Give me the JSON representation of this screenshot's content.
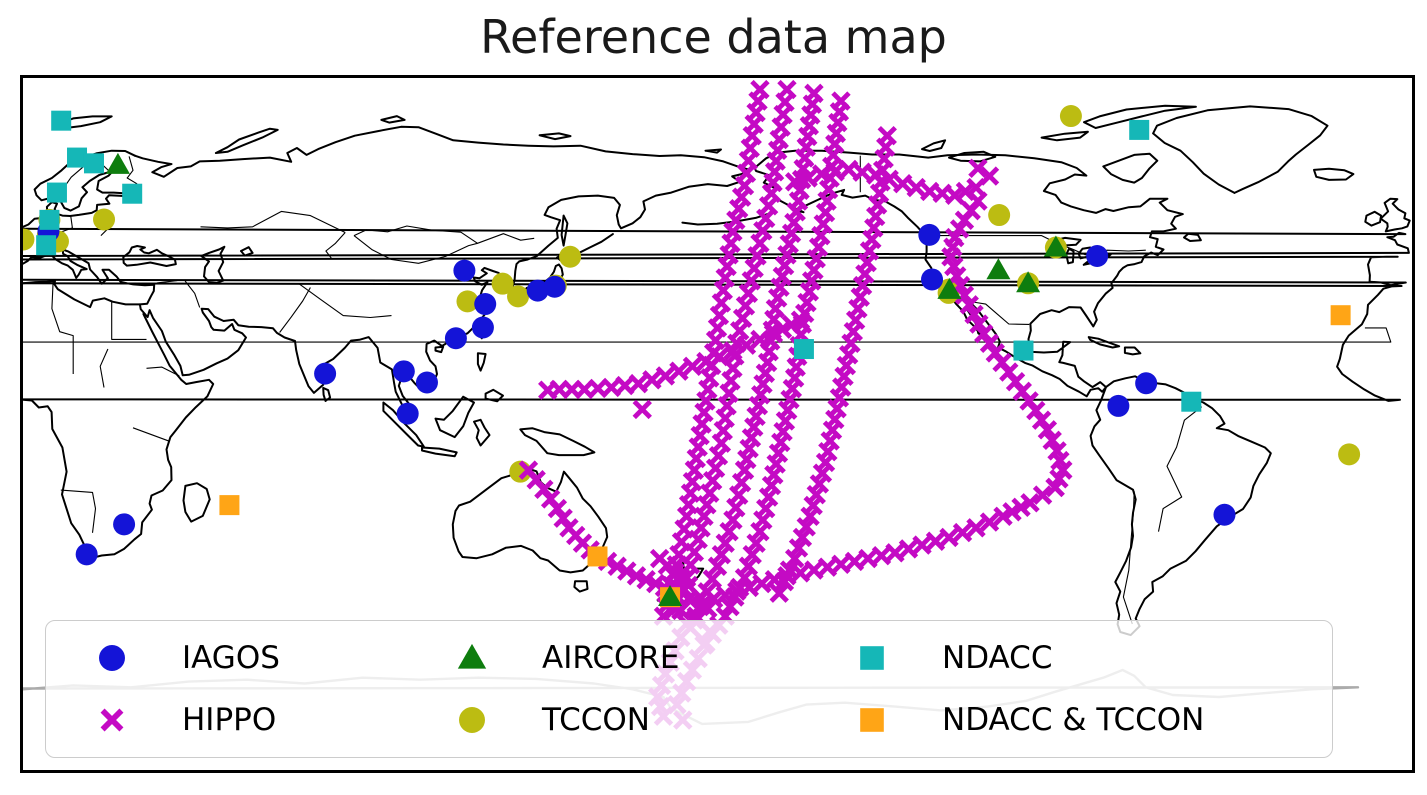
{
  "title": "Reference data map",
  "colors": {
    "iagos": "#1414d7",
    "hippo": "#c40ac4",
    "aircore": "#0e7d0e",
    "tccon": "#bcbc12",
    "ndacc": "#15b7b7",
    "ndacc_tccon": "#ffa516",
    "coastline": "#000000",
    "antarctic_coast": "#ababab"
  },
  "legend": {
    "items": [
      {
        "label": "IAGOS",
        "marker": "circle",
        "color": "#1414d7"
      },
      {
        "label": "HIPPO",
        "marker": "x",
        "color": "#c40ac4"
      },
      {
        "label": "AIRCORE",
        "marker": "triangle",
        "color": "#0e7d0e"
      },
      {
        "label": "TCCON",
        "marker": "circle",
        "color": "#bcbc12"
      },
      {
        "label": "NDACC",
        "marker": "square",
        "color": "#15b7b7"
      },
      {
        "label": "NDACC & TCCON",
        "marker": "square",
        "color": "#ffa516"
      }
    ]
  },
  "chart_data": {
    "type": "scatter",
    "title": "Reference data map",
    "projection": "equirectangular",
    "extent": {
      "lon_min": 2,
      "lon_max": 362,
      "lat_min": -90,
      "lat_max": 90
    },
    "grid": false,
    "legend_position": "lower left",
    "draw_order": [
      "TCCON",
      "HIPPO",
      "IAGOS",
      "NDACC",
      "NDACC & TCCON",
      "AIRCORE"
    ],
    "series": [
      {
        "name": "IAGOS",
        "marker": "circle",
        "color": "#1414d7",
        "points": [
          [
            8.6,
            50.1
          ],
          [
            116.4,
            39.9
          ],
          [
            121.8,
            31.2
          ],
          [
            139.8,
            35.7
          ],
          [
            135.4,
            34.7
          ],
          [
            121.2,
            25.1
          ],
          [
            114.2,
            22.3
          ],
          [
            80.3,
            13.1
          ],
          [
            100.7,
            13.7
          ],
          [
            106.7,
            10.8
          ],
          [
            101.7,
            2.7
          ],
          [
            236.9,
            49.2
          ],
          [
            237.6,
            37.6
          ],
          [
            280.4,
            43.7
          ],
          [
            293.1,
            10.6
          ],
          [
            285.9,
            4.7
          ],
          [
            313.4,
            -23.6
          ],
          [
            28.2,
            -26.1
          ],
          [
            18.5,
            -33.9
          ]
        ]
      },
      {
        "name": "HIPPO",
        "marker": "x",
        "color": "#c40ac4",
        "points": [
          [
            162.5,
            3.8
          ]
        ],
        "tracks": [
          [
            [
              193,
              87
            ],
            [
              191,
              75
            ],
            [
              189,
              62
            ],
            [
              186,
              50
            ],
            [
              184,
              38
            ],
            [
              182,
              25
            ],
            [
              180,
              12
            ],
            [
              178,
              0
            ],
            [
              176,
              -12
            ],
            [
              174,
              -24
            ],
            [
              172,
              -34
            ],
            [
              170,
              -42
            ],
            [
              168,
              -50
            ]
          ],
          [
            [
              200,
              87
            ],
            [
              198,
              74
            ],
            [
              196,
              60
            ],
            [
              193,
              47
            ],
            [
              190,
              34
            ],
            [
              187,
              21
            ],
            [
              185,
              8
            ],
            [
              183,
              -5
            ],
            [
              180,
              -18
            ],
            [
              177,
              -30
            ],
            [
              174,
              -40
            ],
            [
              171,
              -48
            ]
          ],
          [
            [
              207,
              86
            ],
            [
              205,
              72
            ],
            [
              203,
              58
            ],
            [
              200,
              44
            ],
            [
              197,
              30
            ],
            [
              195,
              16
            ],
            [
              192,
              2
            ],
            [
              189,
              -12
            ],
            [
              186,
              -25
            ],
            [
              182,
              -37
            ],
            [
              178,
              -47
            ],
            [
              175,
              -53
            ]
          ],
          [
            [
              214,
              84
            ],
            [
              212,
              70
            ],
            [
              210,
              55
            ],
            [
              207,
              40
            ],
            [
              204,
              26
            ],
            [
              202,
              12
            ],
            [
              199,
              -2
            ],
            [
              196,
              -16
            ],
            [
              193,
              -28
            ],
            [
              189,
              -40
            ],
            [
              184,
              -50
            ],
            [
              179,
              -57
            ]
          ],
          [
            [
              226,
              75
            ],
            [
              224,
              60
            ],
            [
              222,
              48
            ],
            [
              219,
              33
            ],
            [
              216,
              18
            ],
            [
              213,
              4
            ],
            [
              210,
              -10
            ],
            [
              206,
              -24
            ],
            [
              202,
              -35
            ],
            [
              198,
              -44
            ]
          ],
          [
            [
              174,
              -52
            ],
            [
              171,
              -59
            ],
            [
              168.5,
              -65
            ],
            [
              166.5,
              -71
            ],
            [
              168,
              -76
            ]
          ],
          [
            [
              180,
              -54
            ],
            [
              177,
              -61
            ],
            [
              174,
              -67
            ],
            [
              171.5,
              -73
            ],
            [
              173,
              -77
            ]
          ],
          [
            [
              202,
              63
            ],
            [
              209,
              65
            ],
            [
              216,
              66.2
            ],
            [
              223,
              64.8
            ],
            [
              230,
              62.5
            ],
            [
              237,
              60.5
            ],
            [
              243.5,
              59.5
            ],
            [
              249,
              61.5
            ],
            [
              252.5,
              64.5
            ],
            [
              249.5,
              66.5
            ]
          ],
          [
            [
              249.5,
              58
            ],
            [
              246,
              53
            ],
            [
              243.5,
              48.5
            ],
            [
              242.5,
              43.5
            ],
            [
              244,
              38.5
            ],
            [
              246,
              33.5
            ],
            [
              248.5,
              28.5
            ],
            [
              251,
              23.5
            ],
            [
              254,
              18.5
            ],
            [
              257.5,
              13.5
            ],
            [
              261,
              8.5
            ],
            [
              264.5,
              3.5
            ],
            [
              267.5,
              -1.5
            ],
            [
              270,
              -7
            ],
            [
              271.5,
              -12
            ],
            [
              269.5,
              -16.5
            ]
          ],
          [
            [
              269.5,
              -16.5
            ],
            [
              263,
              -20.5
            ],
            [
              256,
              -24
            ],
            [
              249,
              -27
            ],
            [
              242,
              -29.5
            ],
            [
              235,
              -31.5
            ],
            [
              228,
              -33.5
            ],
            [
              221,
              -35
            ],
            [
              214,
              -36.5
            ],
            [
              207,
              -38
            ],
            [
              200,
              -39.5
            ],
            [
              193.5,
              -41.5
            ],
            [
              187,
              -43.5
            ],
            [
              181,
              -45.5
            ]
          ],
          [
            [
              203.5,
              27
            ],
            [
              196.5,
              23.5
            ],
            [
              189.5,
              20.5
            ],
            [
              182.5,
              17.5
            ],
            [
              175.5,
              15
            ],
            [
              168.5,
              12.5
            ],
            [
              161.5,
              10.5
            ],
            [
              154.5,
              9.5
            ],
            [
              147.5,
              9
            ],
            [
              141,
              9
            ],
            [
              138,
              8.8
            ]
          ],
          [
            [
              133,
              -12
            ],
            [
              137,
              -17
            ],
            [
              140.5,
              -22
            ],
            [
              143.5,
              -27
            ],
            [
              147,
              -31
            ],
            [
              151,
              -34.5
            ],
            [
              156,
              -37
            ],
            [
              161,
              -39.5
            ],
            [
              166,
              -41.5
            ],
            [
              170.5,
              -43.5
            ],
            [
              174.5,
              -45.5
            ],
            [
              177.5,
              -47.5
            ]
          ],
          [
            [
              167,
              -35
            ],
            [
              171,
              -38.5
            ],
            [
              174.5,
              -42
            ],
            [
              177.5,
              -45
            ],
            [
              179.5,
              -48
            ],
            [
              176,
              -51
            ],
            [
              172.5,
              -48.5
            ]
          ]
        ]
      },
      {
        "name": "AIRCORE",
        "marker": "triangle",
        "color": "#0e7d0e",
        "points": [
          [
            26.6,
            67.4
          ],
          [
            242.1,
            34.9
          ],
          [
            254.8,
            40.0
          ],
          [
            262.5,
            36.6
          ],
          [
            269.7,
            45.9
          ],
          [
            169.7,
            -45.0
          ]
        ]
      },
      {
        "name": "TCCON",
        "marker": "circle",
        "color": "#bcbc12",
        "points": [
          [
            273.6,
            80.1
          ],
          [
            23.0,
            53.2
          ],
          [
            8.85,
            53.1
          ],
          [
            8.44,
            49.1
          ],
          [
            2.11,
            48.0
          ],
          [
            11.06,
            47.48
          ],
          [
            143.8,
            43.5
          ],
          [
            140.1,
            36.0
          ],
          [
            130.3,
            33.2
          ],
          [
            126.3,
            36.5
          ],
          [
            117.2,
            31.9
          ],
          [
            241.9,
            34.1
          ],
          [
            242.1,
            35.0
          ],
          [
            255.0,
            54.35
          ],
          [
            262.5,
            36.6
          ],
          [
            269.7,
            45.9
          ],
          [
            130.9,
            -12.4
          ],
          [
            345.7,
            -7.9
          ]
        ]
      },
      {
        "name": "NDACC",
        "marker": "square",
        "color": "#15b7b7",
        "points": [
          [
            11.9,
            78.9
          ],
          [
            16.0,
            69.3
          ],
          [
            20.4,
            67.8
          ],
          [
            10.8,
            60.2
          ],
          [
            30.3,
            59.9
          ],
          [
            8.85,
            53.1
          ],
          [
            8.0,
            46.5
          ],
          [
            291.3,
            76.5
          ],
          [
            204.4,
            19.5
          ],
          [
            261.3,
            19.1
          ],
          [
            304.8,
            5.8
          ]
        ]
      },
      {
        "name": "NDACC & TCCON",
        "marker": "square",
        "color": "#ffa516",
        "points": [
          [
            343.5,
            28.3
          ],
          [
            55.5,
            -21.1
          ],
          [
            150.9,
            -34.45
          ],
          [
            169.7,
            -45.05
          ]
        ]
      }
    ]
  }
}
